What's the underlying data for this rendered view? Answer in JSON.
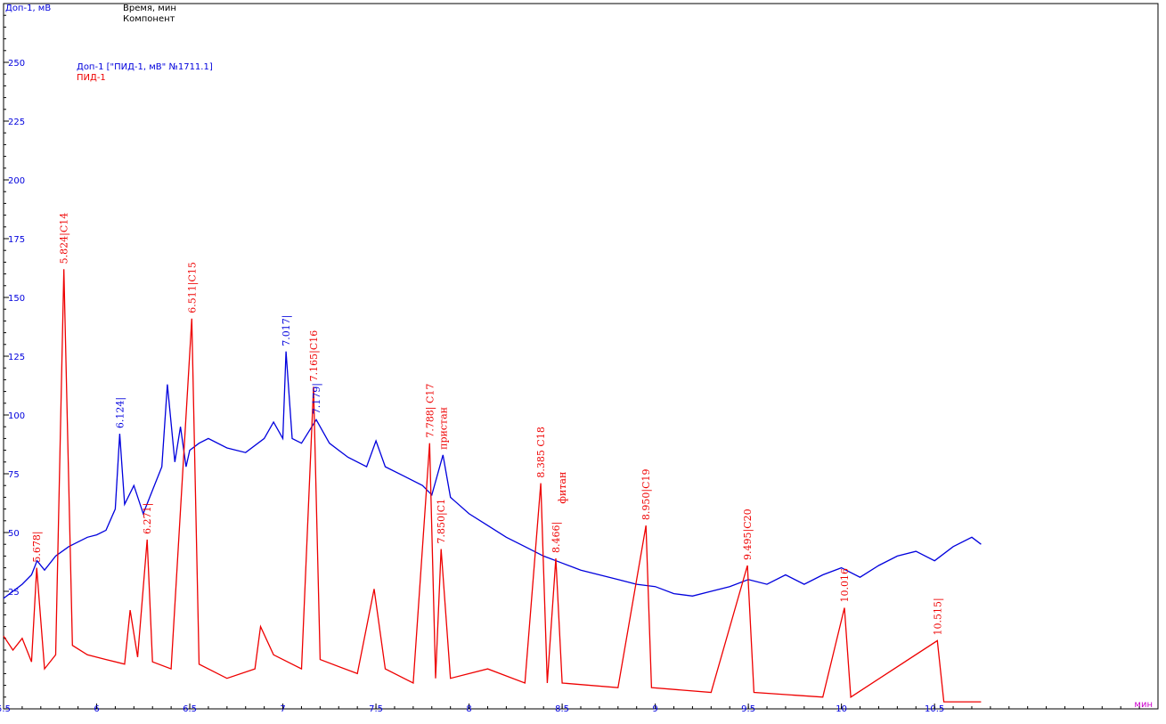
{
  "header": {
    "y_axis_title": "Доп-1, мВ",
    "x_axis_title": "Время, мин",
    "line2": "Компонент"
  },
  "legend": {
    "series1": "Доп-1  [\"ПИД-1, мВ\"  №1711.1]",
    "series2": "ПИД-1"
  },
  "colors": {
    "blue": "#0000dd",
    "red": "#ee0000",
    "axis": "#000000"
  },
  "chart_data": {
    "type": "line",
    "xlim": [
      5.5,
      11.7
    ],
    "ylim": [
      -25,
      275
    ],
    "x_ticks": [
      5.5,
      6,
      6.5,
      7,
      7.5,
      8,
      8.5,
      9,
      9.5,
      10,
      10.5
    ],
    "x_tick_labels": [
      "5.5",
      "6",
      "6.5",
      "7",
      "7.5",
      "8",
      "8.5",
      "9",
      "9.5",
      "10",
      "10.5"
    ],
    "y_ticks": [
      25,
      50,
      75,
      100,
      125,
      150,
      175,
      200,
      225,
      250
    ],
    "x_unit_label": "мин",
    "series": [
      {
        "name": "Доп-1",
        "color": "#0000dd",
        "points": [
          [
            5.5,
            22
          ],
          [
            5.55,
            25
          ],
          [
            5.6,
            28
          ],
          [
            5.65,
            32
          ],
          [
            5.68,
            38
          ],
          [
            5.72,
            34
          ],
          [
            5.78,
            40
          ],
          [
            5.85,
            44
          ],
          [
            5.9,
            46
          ],
          [
            5.95,
            48
          ],
          [
            6.0,
            49
          ],
          [
            6.05,
            51
          ],
          [
            6.1,
            60
          ],
          [
            6.124,
            92
          ],
          [
            6.15,
            62
          ],
          [
            6.2,
            70
          ],
          [
            6.25,
            58
          ],
          [
            6.3,
            68
          ],
          [
            6.35,
            78
          ],
          [
            6.38,
            113
          ],
          [
            6.42,
            80
          ],
          [
            6.45,
            95
          ],
          [
            6.48,
            78
          ],
          [
            6.5,
            85
          ],
          [
            6.55,
            88
          ],
          [
            6.6,
            90
          ],
          [
            6.7,
            86
          ],
          [
            6.8,
            84
          ],
          [
            6.9,
            90
          ],
          [
            6.95,
            97
          ],
          [
            7.0,
            90
          ],
          [
            7.017,
            127
          ],
          [
            7.05,
            90
          ],
          [
            7.1,
            88
          ],
          [
            7.179,
            98
          ],
          [
            7.25,
            88
          ],
          [
            7.35,
            82
          ],
          [
            7.45,
            78
          ],
          [
            7.5,
            89
          ],
          [
            7.55,
            78
          ],
          [
            7.65,
            74
          ],
          [
            7.75,
            70
          ],
          [
            7.8,
            66
          ],
          [
            7.86,
            83
          ],
          [
            7.9,
            65
          ],
          [
            8.0,
            58
          ],
          [
            8.1,
            53
          ],
          [
            8.2,
            48
          ],
          [
            8.3,
            44
          ],
          [
            8.4,
            40
          ],
          [
            8.5,
            37
          ],
          [
            8.6,
            34
          ],
          [
            8.7,
            32
          ],
          [
            8.8,
            30
          ],
          [
            8.9,
            28
          ],
          [
            9.0,
            27
          ],
          [
            9.1,
            24
          ],
          [
            9.2,
            23
          ],
          [
            9.3,
            25
          ],
          [
            9.4,
            27
          ],
          [
            9.5,
            30
          ],
          [
            9.6,
            28
          ],
          [
            9.7,
            32
          ],
          [
            9.8,
            28
          ],
          [
            9.9,
            32
          ],
          [
            10.0,
            35
          ],
          [
            10.1,
            31
          ],
          [
            10.2,
            36
          ],
          [
            10.3,
            40
          ],
          [
            10.4,
            42
          ],
          [
            10.5,
            38
          ],
          [
            10.6,
            44
          ],
          [
            10.7,
            48
          ],
          [
            10.75,
            45
          ]
        ]
      },
      {
        "name": "ПИД-1",
        "color": "#ee0000",
        "points": [
          [
            5.5,
            6
          ],
          [
            5.55,
            0
          ],
          [
            5.6,
            5
          ],
          [
            5.65,
            -5
          ],
          [
            5.678,
            35
          ],
          [
            5.72,
            -8
          ],
          [
            5.78,
            -2
          ],
          [
            5.824,
            162
          ],
          [
            5.87,
            2
          ],
          [
            5.95,
            -2
          ],
          [
            6.05,
            -4
          ],
          [
            6.15,
            -6
          ],
          [
            6.18,
            17
          ],
          [
            6.22,
            -3
          ],
          [
            6.271,
            47
          ],
          [
            6.3,
            -5
          ],
          [
            6.4,
            -8
          ],
          [
            6.511,
            141
          ],
          [
            6.55,
            -6
          ],
          [
            6.7,
            -12
          ],
          [
            6.85,
            -8
          ],
          [
            6.88,
            10
          ],
          [
            6.95,
            -2
          ],
          [
            7.1,
            -8
          ],
          [
            7.165,
            112
          ],
          [
            7.2,
            -4
          ],
          [
            7.4,
            -10
          ],
          [
            7.49,
            26
          ],
          [
            7.55,
            -8
          ],
          [
            7.7,
            -14
          ],
          [
            7.788,
            88
          ],
          [
            7.82,
            -12
          ],
          [
            7.85,
            43
          ],
          [
            7.9,
            -12
          ],
          [
            8.1,
            -8
          ],
          [
            8.3,
            -14
          ],
          [
            8.385,
            71
          ],
          [
            8.42,
            -14
          ],
          [
            8.466,
            39
          ],
          [
            8.5,
            -14
          ],
          [
            8.8,
            -16
          ],
          [
            8.95,
            53
          ],
          [
            8.98,
            -16
          ],
          [
            9.3,
            -18
          ],
          [
            9.495,
            36
          ],
          [
            9.53,
            -18
          ],
          [
            9.9,
            -20
          ],
          [
            10.016,
            18
          ],
          [
            10.05,
            -20
          ],
          [
            10.515,
            4
          ],
          [
            10.55,
            -22
          ],
          [
            10.75,
            -22
          ]
        ]
      }
    ],
    "peaks": [
      {
        "series": "Доп-1",
        "x": 6.124,
        "y": 92,
        "label": "6.124|"
      },
      {
        "series": "Доп-1",
        "x": 7.017,
        "y": 127,
        "label": "7.017|"
      },
      {
        "series": "Доп-1",
        "x": 7.179,
        "y": 98,
        "label": "7.179|"
      },
      {
        "series": "ПИД-1",
        "x": 5.678,
        "y": 35,
        "label": "5.678|"
      },
      {
        "series": "ПИД-1",
        "x": 5.824,
        "y": 162,
        "label": "5.824|C14"
      },
      {
        "series": "ПИД-1",
        "x": 6.271,
        "y": 47,
        "label": "6.271|"
      },
      {
        "series": "ПИД-1",
        "x": 6.511,
        "y": 141,
        "label": "6.511|C15"
      },
      {
        "series": "ПИД-1",
        "x": 7.165,
        "y": 112,
        "label": "7.165|C16"
      },
      {
        "series": "ПИД-1",
        "x": 7.788,
        "y": 88,
        "label": "7.788| C17"
      },
      {
        "series": "ПИД-1",
        "x": 7.85,
        "y": 43,
        "label": "7.850|C1"
      },
      {
        "series": "ПИД-1",
        "x": 7.86,
        "y": 83,
        "label": "пристан"
      },
      {
        "series": "ПИД-1",
        "x": 8.385,
        "y": 71,
        "label": "8.385 C18"
      },
      {
        "series": "ПИД-1",
        "x": 8.466,
        "y": 39,
        "label": "8.466|"
      },
      {
        "series": "ПИД-1",
        "x": 8.5,
        "y": 60,
        "label": "фитан"
      },
      {
        "series": "ПИД-1",
        "x": 8.95,
        "y": 53,
        "label": "8.950|C19"
      },
      {
        "series": "ПИД-1",
        "x": 9.495,
        "y": 36,
        "label": "9.495|C20"
      },
      {
        "series": "ПИД-1",
        "x": 10.016,
        "y": 18,
        "label": "10.016"
      },
      {
        "series": "ПИД-1",
        "x": 10.515,
        "y": 4,
        "label": "10.515|"
      }
    ]
  }
}
